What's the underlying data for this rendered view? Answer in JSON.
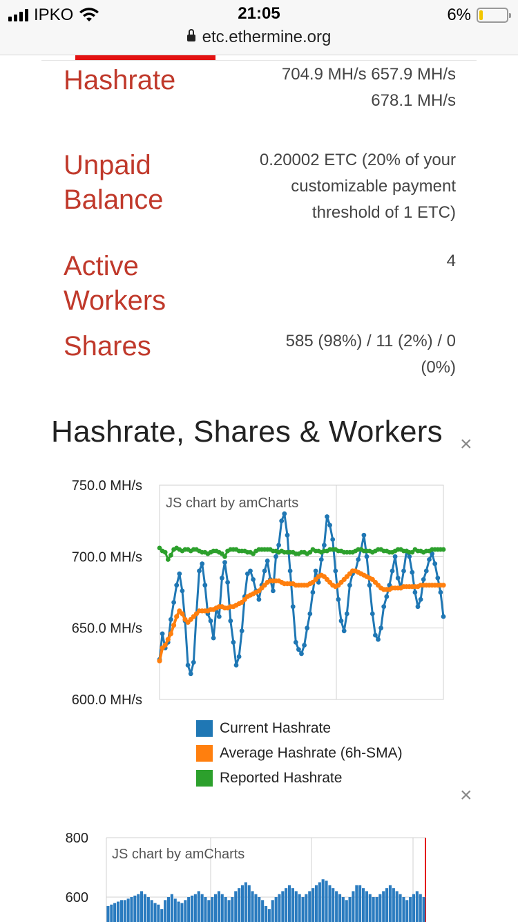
{
  "status_bar": {
    "carrier": "IPKO",
    "time": "21:05",
    "battery": "6%"
  },
  "browser": {
    "url": "etc.ethermine.org"
  },
  "stats": {
    "hashrate": {
      "label": "Hashrate",
      "value_line1": "704.9 MH/s 657.9 MH/s",
      "value_line2": "678.1 MH/s"
    },
    "unpaid": {
      "label_line1": "Unpaid",
      "label_line2": "Balance",
      "value_line1": "0.20002 ETC (20% of your",
      "value_line2": "customizable payment",
      "value_line3": "threshold of 1 ETC)"
    },
    "workers": {
      "label_line1": "Active",
      "label_line2": "Workers",
      "value": "4"
    },
    "shares": {
      "label": "Shares",
      "value_line1": "585 (98%) / 11 (2%) / 0",
      "value_line2": "(0%)"
    }
  },
  "section": {
    "title": "Hashrate, Shares & Workers",
    "close": "×"
  },
  "chart1": {
    "watermark": "JS chart by amCharts",
    "y_ticks": [
      "750.0 MH/s",
      "700.0 MH/s",
      "650.0 MH/s",
      "600.0 MH/s"
    ],
    "legend": [
      "Current Hashrate",
      "Average Hashrate (6h-SMA)",
      "Reported Hashrate"
    ],
    "colors": {
      "current": "#1f77b4",
      "average": "#ff7f0e",
      "reported": "#2ca02c"
    }
  },
  "chart2": {
    "watermark": "JS chart by amCharts",
    "y_ticks": [
      "800",
      "600"
    ],
    "close": "×"
  },
  "chart_data": [
    {
      "type": "line",
      "ylim": [
        600,
        750
      ],
      "x": [
        0,
        1,
        2,
        3,
        4,
        5,
        6,
        7,
        8,
        9,
        10,
        11,
        12,
        13,
        14,
        15,
        16,
        17,
        18,
        19,
        20,
        21,
        22,
        23,
        24,
        25,
        26,
        27,
        28,
        29,
        30,
        31,
        32,
        33,
        34,
        35,
        36,
        37,
        38,
        39,
        40,
        41,
        42,
        43,
        44,
        45,
        46,
        47,
        48,
        49,
        50,
        51,
        52,
        53,
        54,
        55,
        56,
        57,
        58,
        59,
        60,
        61,
        62,
        63,
        64,
        65,
        66,
        67,
        68,
        69,
        70,
        71,
        72,
        73,
        74,
        75,
        76,
        77,
        78,
        79,
        80,
        81,
        82,
        83,
        84,
        85,
        86,
        87,
        88,
        89,
        90,
        91,
        92,
        93,
        94,
        95,
        96,
        97,
        98,
        99,
        100
      ],
      "series": [
        {
          "name": "Current Hashrate",
          "values": [
            628,
            646,
            636,
            640,
            656,
            668,
            680,
            688,
            676,
            655,
            624,
            618,
            626,
            660,
            690,
            695,
            680,
            660,
            655,
            643,
            664,
            658,
            685,
            696,
            682,
            655,
            640,
            624,
            630,
            648,
            672,
            688,
            690,
            684,
            676,
            670,
            680,
            690,
            697,
            684,
            676,
            700,
            708,
            725,
            730,
            715,
            690,
            665,
            640,
            635,
            632,
            638,
            650,
            660,
            675,
            690,
            682,
            698,
            708,
            728,
            722,
            712,
            690,
            670,
            655,
            648,
            660,
            680,
            688,
            690,
            698,
            705,
            715,
            700,
            680,
            660,
            645,
            642,
            650,
            665,
            672,
            680,
            690,
            700,
            685,
            678,
            690,
            704,
            700,
            689,
            675,
            665,
            670,
            684,
            690,
            698,
            702,
            695,
            685,
            675,
            658
          ]
        },
        {
          "name": "Average Hashrate (6h-SMA)",
          "values": [
            627,
            636,
            638,
            642,
            646,
            652,
            658,
            662,
            660,
            656,
            654,
            656,
            658,
            660,
            662,
            662,
            662,
            662,
            663,
            663,
            664,
            665,
            665,
            664,
            664,
            665,
            665,
            666,
            667,
            668,
            670,
            672,
            673,
            674,
            675,
            676,
            678,
            680,
            682,
            683,
            683,
            683,
            683,
            682,
            681,
            681,
            681,
            681,
            680,
            680,
            680,
            680,
            680,
            681,
            682,
            684,
            686,
            687,
            686,
            684,
            682,
            680,
            679,
            680,
            682,
            684,
            686,
            688,
            690,
            690,
            689,
            688,
            687,
            686,
            685,
            684,
            682,
            680,
            678,
            677,
            677,
            677,
            678,
            678,
            678,
            678,
            679,
            679,
            679,
            679,
            679,
            679,
            680,
            680,
            680,
            680,
            680,
            680,
            680,
            680,
            680
          ]
        },
        {
          "name": "Reported Hashrate",
          "values": [
            706,
            704,
            703,
            698,
            701,
            705,
            706,
            705,
            704,
            705,
            705,
            704,
            705,
            705,
            704,
            703,
            703,
            702,
            703,
            704,
            704,
            703,
            702,
            700,
            704,
            705,
            705,
            705,
            704,
            704,
            704,
            703,
            703,
            702,
            704,
            705,
            705,
            705,
            705,
            705,
            704,
            704,
            703,
            704,
            703,
            703,
            703,
            703,
            702,
            702,
            703,
            703,
            702,
            703,
            705,
            704,
            704,
            703,
            704,
            704,
            705,
            705,
            705,
            704,
            704,
            703,
            703,
            703,
            703,
            704,
            705,
            705,
            704,
            704,
            704,
            703,
            704,
            705,
            705,
            704,
            704,
            703,
            703,
            704,
            705,
            705,
            704,
            704,
            703,
            703,
            705,
            704,
            704,
            703,
            704,
            704,
            705,
            705,
            705,
            705,
            705
          ]
        }
      ]
    },
    {
      "type": "bar",
      "ylim": [
        450,
        800
      ],
      "y_ticks": [
        800,
        600
      ],
      "values": [
        570,
        575,
        580,
        585,
        590,
        590,
        595,
        600,
        605,
        610,
        620,
        610,
        600,
        590,
        580,
        575,
        560,
        590,
        600,
        610,
        595,
        585,
        580,
        590,
        600,
        605,
        610,
        620,
        610,
        600,
        590,
        600,
        610,
        620,
        610,
        600,
        590,
        600,
        620,
        630,
        640,
        650,
        640,
        620,
        610,
        600,
        590,
        570,
        560,
        590,
        600,
        610,
        620,
        630,
        640,
        630,
        620,
        610,
        600,
        610,
        620,
        630,
        640,
        650,
        660,
        655,
        640,
        630,
        620,
        610,
        600,
        590,
        600,
        620,
        640,
        640,
        630,
        620,
        610,
        600,
        600,
        610,
        620,
        630,
        640,
        630,
        620,
        610,
        600,
        590,
        600,
        610,
        620,
        610,
        600
      ]
    }
  ]
}
